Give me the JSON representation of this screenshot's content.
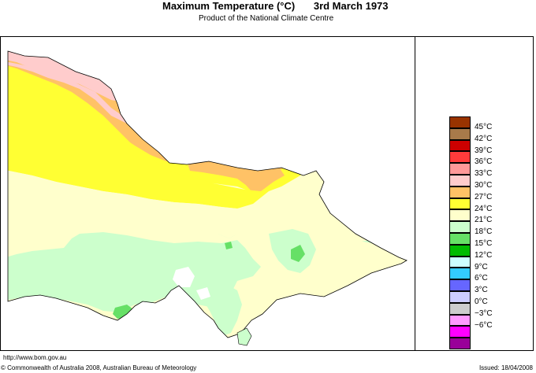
{
  "header": {
    "title": "Maximum Temperature (°C)",
    "date": "3rd March 1973",
    "subtitle": "Product of the National Climate Centre"
  },
  "legend": {
    "items": [
      {
        "label": "45°C",
        "color": "#993300"
      },
      {
        "label": "42°C",
        "color": "#a87a4a"
      },
      {
        "label": "39°C",
        "color": "#cc0000"
      },
      {
        "label": "36°C",
        "color": "#ff3b3b"
      },
      {
        "label": "33°C",
        "color": "#ff9999"
      },
      {
        "label": "30°C",
        "color": "#ffcccc"
      },
      {
        "label": "27°C",
        "color": "#ffc266"
      },
      {
        "label": "24°C",
        "color": "#ffff33"
      },
      {
        "label": "21°C",
        "color": "#ffffcc"
      },
      {
        "label": "18°C",
        "color": "#ccffcc"
      },
      {
        "label": "15°C",
        "color": "#66e066"
      },
      {
        "label": "12°C",
        "color": "#00bb00"
      },
      {
        "label": "9°C",
        "color": "#ccffff"
      },
      {
        "label": "6°C",
        "color": "#33ccff"
      },
      {
        "label": "3°C",
        "color": "#6666ff"
      },
      {
        "label": "0°C",
        "color": "#ccccff"
      },
      {
        "label": "−3°C",
        "color": "#cccccc"
      },
      {
        "label": "−6°C",
        "color": "#ff99ff"
      }
    ],
    "bottom_color": "#ff00ff",
    "last_color": "#990099"
  },
  "footer": {
    "url": "http://www.bom.gov.au",
    "copyright": "© Commonwealth of Australia 2008, Australian Bureau of Meteorology",
    "issued": "Issued: 18/04/2008"
  },
  "map_colors": {
    "band_33": "#ffcccc",
    "band_30": "#ffc266",
    "band_27": "#ffff33",
    "band_24": "#ffffcc",
    "band_21": "#ccffcc",
    "band_18": "#66e066",
    "water": "#ffffff"
  }
}
